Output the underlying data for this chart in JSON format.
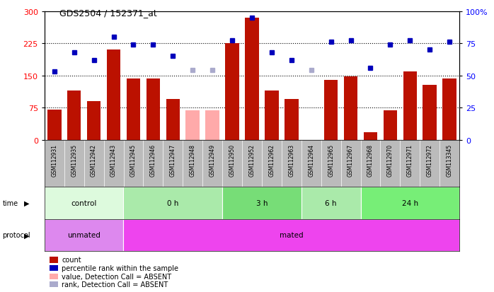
{
  "title": "GDS2504 / 152371_at",
  "samples": [
    "GSM112931",
    "GSM112935",
    "GSM112942",
    "GSM112943",
    "GSM112945",
    "GSM112946",
    "GSM112947",
    "GSM112948",
    "GSM112949",
    "GSM112950",
    "GSM112952",
    "GSM112962",
    "GSM112963",
    "GSM112964",
    "GSM112965",
    "GSM112967",
    "GSM112968",
    "GSM112970",
    "GSM112971",
    "GSM112972",
    "GSM113345"
  ],
  "bar_values": [
    70,
    115,
    90,
    210,
    143,
    143,
    95,
    68,
    68,
    225,
    285,
    115,
    95,
    0,
    140,
    148,
    18,
    68,
    160,
    128,
    143
  ],
  "bar_absent": [
    false,
    false,
    false,
    false,
    false,
    false,
    false,
    true,
    true,
    false,
    false,
    false,
    false,
    true,
    false,
    false,
    false,
    false,
    false,
    false,
    false
  ],
  "rank_values": [
    53,
    68,
    62,
    80,
    74,
    74,
    65,
    54,
    54,
    77,
    95,
    68,
    62,
    54,
    76,
    77,
    56,
    74,
    77,
    70,
    76
  ],
  "rank_absent": [
    false,
    false,
    false,
    false,
    false,
    false,
    false,
    true,
    true,
    false,
    false,
    false,
    false,
    true,
    false,
    false,
    false,
    false,
    false,
    false,
    false
  ],
  "ylim_left": [
    0,
    300
  ],
  "ylim_right": [
    0,
    100
  ],
  "yticks_left": [
    0,
    75,
    150,
    225,
    300
  ],
  "yticks_right": [
    0,
    25,
    50,
    75,
    100
  ],
  "time_groups": [
    {
      "label": "control",
      "start": 0,
      "end": 4,
      "color": "#ddfadd"
    },
    {
      "label": "0 h",
      "start": 4,
      "end": 9,
      "color": "#aaeaaa"
    },
    {
      "label": "3 h",
      "start": 9,
      "end": 13,
      "color": "#77dd77"
    },
    {
      "label": "6 h",
      "start": 13,
      "end": 16,
      "color": "#aaeaaa"
    },
    {
      "label": "24 h",
      "start": 16,
      "end": 21,
      "color": "#77ee77"
    }
  ],
  "protocol_groups": [
    {
      "label": "unmated",
      "start": 0,
      "end": 4,
      "color": "#dd88ee"
    },
    {
      "label": "mated",
      "start": 4,
      "end": 21,
      "color": "#ee44ee"
    }
  ],
  "bar_color_present": "#bb1100",
  "bar_color_absent": "#ffaaaa",
  "rank_color_present": "#0000bb",
  "rank_color_absent": "#aaaacc",
  "tick_area_color": "#bbbbbb",
  "legend_items": [
    {
      "label": "count",
      "color": "#bb1100"
    },
    {
      "label": "percentile rank within the sample",
      "color": "#0000bb"
    },
    {
      "label": "value, Detection Call = ABSENT",
      "color": "#ffaaaa"
    },
    {
      "label": "rank, Detection Call = ABSENT",
      "color": "#aaaacc"
    }
  ]
}
